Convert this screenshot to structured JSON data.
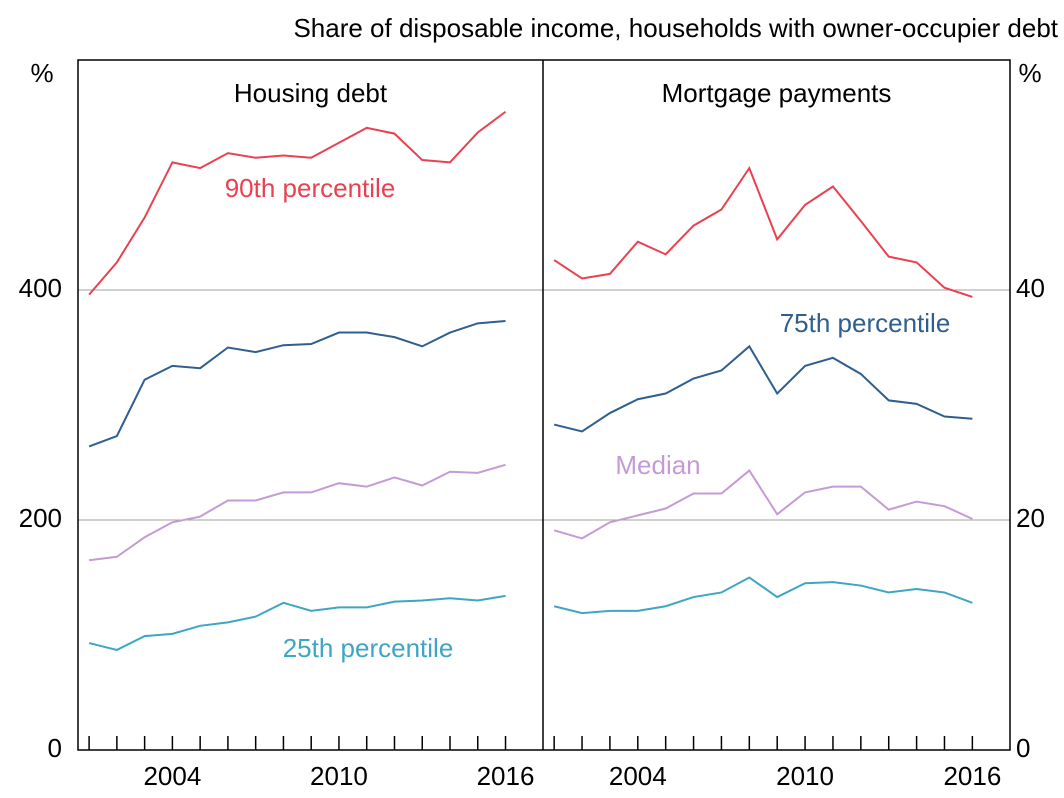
{
  "title": "Share of disposable income, households with owner-occupier debt",
  "chart_data": [
    {
      "type": "line",
      "title": "Housing debt",
      "y_label": "%",
      "x": [
        2001,
        2002,
        2003,
        2004,
        2005,
        2006,
        2007,
        2008,
        2009,
        2010,
        2011,
        2012,
        2013,
        2014,
        2015,
        2016
      ],
      "xlim": [
        2000.6,
        2017.35
      ],
      "xticks": [
        2004,
        2010,
        2016
      ],
      "ylim": [
        0,
        600
      ],
      "yticks": [
        0,
        200,
        400
      ],
      "grid": true,
      "series": [
        {
          "name": "90th percentile",
          "color": "#ea4150",
          "values": [
            396,
            424,
            463,
            511,
            506,
            519,
            515,
            517,
            515,
            528,
            541,
            536,
            513,
            511,
            537,
            555
          ]
        },
        {
          "color": "#2e5f8f",
          "values": [
            264,
            273,
            322,
            334,
            332,
            350,
            346,
            352,
            353,
            363,
            363,
            359,
            351,
            363,
            371,
            373
          ]
        },
        {
          "color": "#c59bd6",
          "values": [
            165,
            168,
            185,
            198,
            203,
            217,
            217,
            224,
            224,
            232,
            229,
            237,
            230,
            242,
            241,
            248
          ]
        },
        {
          "name": "25th percentile",
          "color": "#3ea6c4",
          "values": [
            93,
            87,
            99,
            101,
            108,
            111,
            116,
            128,
            121,
            124,
            124,
            129,
            130,
            132,
            130,
            134
          ]
        }
      ]
    },
    {
      "type": "line",
      "title": "Mortgage payments",
      "y_label": "%",
      "x": [
        2001,
        2002,
        2003,
        2004,
        2005,
        2006,
        2007,
        2008,
        2009,
        2010,
        2011,
        2012,
        2013,
        2014,
        2015,
        2016
      ],
      "xlim": [
        2000.6,
        2017.35
      ],
      "xticks": [
        2004,
        2010,
        2016
      ],
      "ylim": [
        0,
        60
      ],
      "yticks": [
        0,
        20,
        40
      ],
      "grid": true,
      "series": [
        {
          "color": "#ea4150",
          "values": [
            42.6,
            41.0,
            41.4,
            44.2,
            43.1,
            45.6,
            47.0,
            50.6,
            44.4,
            47.4,
            49.0,
            46.0,
            42.9,
            42.4,
            40.2,
            39.4
          ]
        },
        {
          "name": "75th percentile",
          "color": "#2e5f8f",
          "values": [
            28.3,
            27.7,
            29.3,
            30.5,
            31.0,
            32.3,
            33.0,
            35.1,
            31.0,
            33.4,
            34.1,
            32.7,
            30.4,
            30.1,
            29.0,
            28.8
          ]
        },
        {
          "name": "Median",
          "color": "#c59bd6",
          "values": [
            19.1,
            18.4,
            19.8,
            20.4,
            21.0,
            22.3,
            22.3,
            24.3,
            20.5,
            22.4,
            22.9,
            22.9,
            20.9,
            21.6,
            21.2,
            20.1
          ]
        },
        {
          "color": "#3ea6c4",
          "values": [
            12.5,
            11.9,
            12.1,
            12.1,
            12.5,
            13.3,
            13.7,
            15.0,
            13.3,
            14.5,
            14.6,
            14.3,
            13.7,
            14.0,
            13.7,
            12.8
          ]
        }
      ]
    }
  ]
}
